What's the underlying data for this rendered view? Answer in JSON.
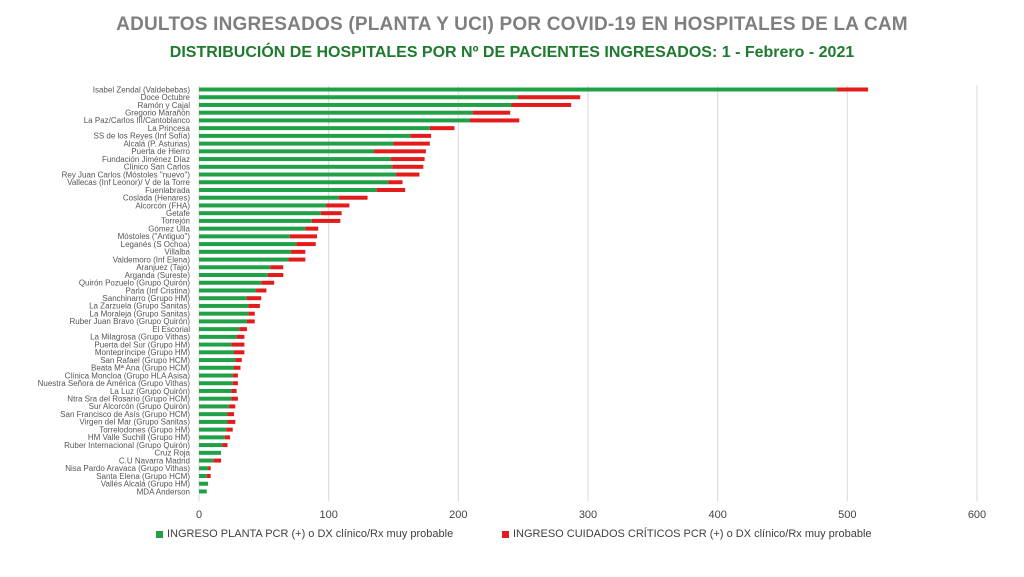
{
  "title": "ADULTOS INGRESADOS (PLANTA Y UCI) POR COVID-19 EN HOSPITALES DE LA CAM",
  "subtitle": "DISTRIBUCIÓN DE HOSPITALES POR Nº DE PACIENTES INGRESADOS: 1 - Febrero - 2021",
  "colors": {
    "planta": "#21a147",
    "uci": "#e31b1b",
    "grid": "#d9d9d9"
  },
  "chart_data": {
    "type": "bar",
    "orientation": "horizontal",
    "stacked": true,
    "xlim": [
      0,
      600
    ],
    "xticks": [
      "0",
      "100",
      "200",
      "300",
      "400",
      "500",
      "600"
    ],
    "grid": "vertical",
    "legend_position": "bottom",
    "categories": [
      "Isabel Zendal (Valdebebas)",
      "Doce Octubre",
      "Ramón y Cajal",
      "Gregorio Marañón",
      "La Paz/Carlos III/Cantoblanco",
      "La Princesa",
      "SS de los Reyes (Inf Sofía)",
      "Alcalá (P. Asturias)",
      "Puerta de Hierro",
      "Fundación Jiménez Díaz",
      "Clínico San Carlos",
      "Rey Juan Carlos (Móstoles \"nuevo\")",
      "Vallecas (Inf Leonor)/ V de la Torre",
      "Fuenlabrada",
      "Coslada (Henares)",
      "Alcorcón (FHA)",
      "Getafe",
      "Torrejón",
      "Gómez Ulla",
      "Móstoles (\"Antiguo\")",
      "Leganés (S Ochoa)",
      "Villalba",
      "Valdemoro (Inf Elena)",
      "Aranjuez (Tajo)",
      "Arganda (Sureste)",
      "Quirón Pozuelo (Grupo Quirón)",
      "Parla (Inf Cristina)",
      "Sanchinarro (Grupo HM)",
      "La Zarzuela (Grupo Sanitas)",
      "La Moraleja (Grupo Sanitas)",
      "Ruber Juan Bravo (Grupo Quirón)",
      "El Escorial",
      "La Milagrosa (Grupo Vithas)",
      "Puerta del Sur (Grupo HM)",
      "Montepríncipe (Grupo HM)",
      "San Rafael (Grupo HCM)",
      "Beata Mª Ana (Grupo HCM)",
      "Clínica Moncloa (Grupo HLA Asisa)",
      "Nuestra Señora de América (Grupo Vithas)",
      "La Luz (Grupo Quirón)",
      "Ntra Sra del Rosario (Grupo HCM)",
      "Sur Alcorcón (Grupo Quirón)",
      "San Francisco de Asís (Grupo HCM)",
      "Virgen del Mar (Grupo Sanitas)",
      "Torrelodones (Grupo HM)",
      "HM Valle Suchill (Grupo HM)",
      "Ruber Internacional (Grupo Quirón)",
      "Cruz Roja",
      "C.U Navarra Madrid",
      "Nisa Pardo Aravaca (Grupo Vithas)",
      "Santa Elena (Grupo HCM)",
      "Vallés Alcalá (Grupo HM)",
      "MDA Anderson"
    ],
    "series": [
      {
        "name": "INGRESO PLANTA PCR (+) o DX clínico/Rx muy probable",
        "values": [
          492,
          246,
          241,
          211,
          209,
          178,
          163,
          150,
          135,
          148,
          149,
          152,
          146,
          137,
          108,
          98,
          94,
          87,
          82,
          70,
          75,
          71,
          69,
          55,
          53,
          48,
          44,
          37,
          38,
          38,
          37,
          31,
          29,
          25,
          27,
          28,
          27,
          26,
          26,
          25,
          25,
          23,
          22,
          22,
          21,
          20,
          18,
          17,
          11,
          7,
          6,
          7,
          6
        ]
      },
      {
        "name": "INGRESO CUIDADOS CRÍTICOS PCR (+) o DX clínico/Rx muy probable",
        "values": [
          24,
          48,
          46,
          29,
          38,
          19,
          16,
          28,
          40,
          26,
          24,
          18,
          11,
          22,
          22,
          18,
          16,
          22,
          10,
          21,
          15,
          11,
          13,
          10,
          12,
          10,
          8,
          11,
          9,
          5,
          6,
          6,
          6,
          10,
          8,
          5,
          5,
          4,
          4,
          4,
          5,
          5,
          5,
          6,
          5,
          4,
          4,
          0,
          6,
          2,
          3,
          0,
          0
        ]
      }
    ]
  }
}
